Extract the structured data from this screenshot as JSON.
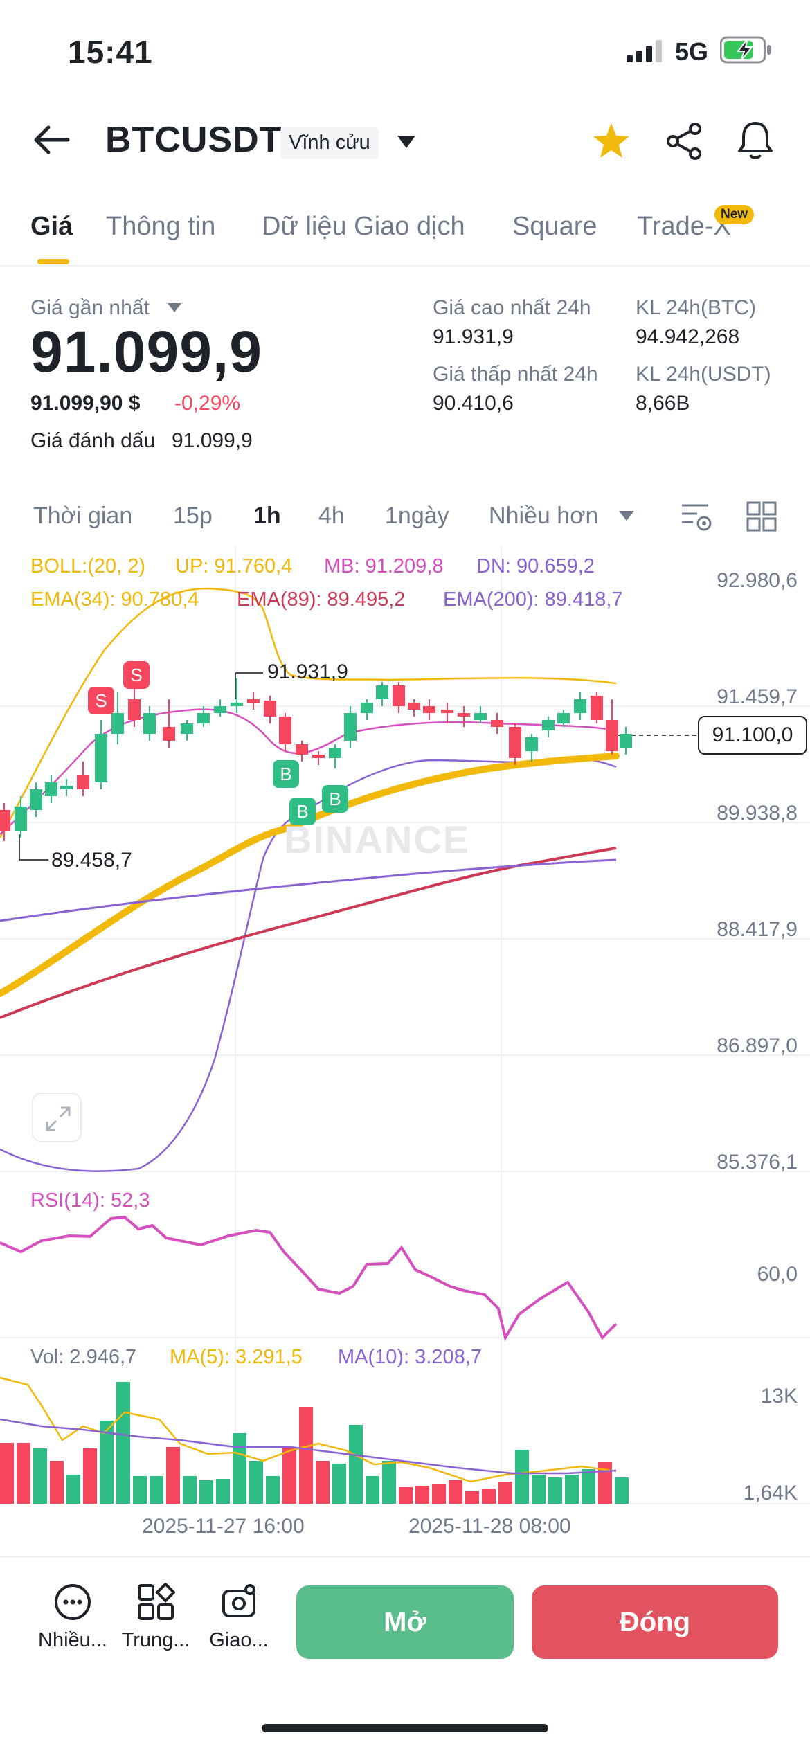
{
  "status": {
    "time": "15:41",
    "network": "5G"
  },
  "header": {
    "symbol": "BTCUSDT",
    "badge": "Vĩnh cửu"
  },
  "tabs": [
    {
      "label": "Giá"
    },
    {
      "label": "Thông tin"
    },
    {
      "label": "Dữ liệu Giao dịch"
    },
    {
      "label": "Square"
    },
    {
      "label": "Trade-X"
    }
  ],
  "new_badge": "New",
  "price": {
    "last_label": "Giá gần nhất",
    "last": "91.099,9",
    "usd": "91.099,90 $",
    "change": "-0,29%",
    "mark_label": "Giá đánh dấu",
    "mark": "91.099,9",
    "high_label": "Giá cao nhất 24h",
    "high": "91.931,9",
    "low_label": "Giá thấp nhất 24h",
    "low": "90.410,6",
    "vol_btc_label": "KL 24h(BTC)",
    "vol_btc": "94.942,268",
    "vol_usdt_label": "KL 24h(USDT)",
    "vol_usdt": "8,66B"
  },
  "timeframes": [
    {
      "label": "Thời gian"
    },
    {
      "label": "15p"
    },
    {
      "label": "1h"
    },
    {
      "label": "4h"
    },
    {
      "label": "1ngày"
    },
    {
      "label": "Nhiều hơn"
    }
  ],
  "indicators": {
    "boll": "BOLL:(20, 2)",
    "up": "UP: 91.760,4",
    "mb": "MB: 91.209,8",
    "dn": "DN: 90.659,2",
    "ema34": "EMA(34): 90.780,4",
    "ema89": "EMA(89): 89.495,2",
    "ema200": "EMA(200): 89.418,7",
    "rsi": "RSI(14): 52,3",
    "vol": "Vol: 2.946,7",
    "ma5": "MA(5): 3.291,5",
    "ma10": "MA(10): 3.208,7"
  },
  "axis": {
    "price_ticks": [
      "92.980,6",
      "91.459,7",
      "89.938,8",
      "88.417,9",
      "86.897,0",
      "85.376,1"
    ],
    "current_price": "91.100,0",
    "high_marker": "91.931,9",
    "low_marker": "89.458,7",
    "rsi_tick": "60,0",
    "vol_ticks": [
      "13K",
      "1,64K"
    ],
    "time_ticks": [
      "2025-11-27 16:00",
      "2025-11-28 08:00"
    ]
  },
  "watermark": "BINANCE",
  "markers": {
    "sell": "S",
    "buy": "B"
  },
  "bottom_bar": {
    "more": "Nhiều...",
    "center": "Trung...",
    "trade": "Giao...",
    "open": "Mở",
    "close": "Đóng"
  },
  "colors": {
    "up": "#2ebd85",
    "down": "#f6465d",
    "accent": "#f0b90b",
    "boll_mid": "#d54fbf",
    "ema34": "#f0b90b",
    "ema89": "#cc3a55",
    "ema200": "#8a63d2"
  }
}
